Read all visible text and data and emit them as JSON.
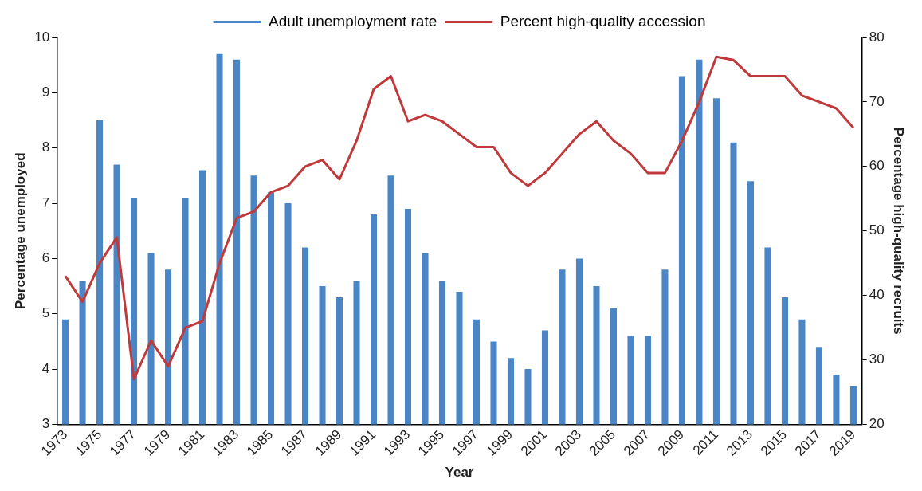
{
  "chart_data": {
    "type": "bar",
    "xlabel": "Year",
    "ylabel": "Percentage unemployed",
    "y2label": "Percentage high-quality recruits",
    "categories": [
      "1973",
      null,
      "1975",
      null,
      "1977",
      null,
      "1979",
      null,
      "1981",
      null,
      "1983",
      null,
      "1985",
      null,
      "1987",
      null,
      "1989",
      null,
      "1991",
      null,
      "1993",
      null,
      "1995",
      null,
      "1997",
      null,
      "1999",
      null,
      "2001",
      null,
      "2003",
      null,
      "2005",
      null,
      "2007",
      null,
      "2009",
      null,
      "2011",
      null,
      "2013",
      null,
      "2015",
      null,
      "2017",
      null,
      "2019"
    ],
    "series": [
      {
        "name": "Adult unemployment rate",
        "color": "#4a86c5",
        "values": [
          4.9,
          5.6,
          8.5,
          7.7,
          7.1,
          6.1,
          5.8,
          7.1,
          7.6,
          9.7,
          9.6,
          7.5,
          7.2,
          7.0,
          6.2,
          5.5,
          5.3,
          5.6,
          6.8,
          7.5,
          6.9,
          6.1,
          5.6,
          5.4,
          4.9,
          4.5,
          4.2,
          4.0,
          4.7,
          5.8,
          6.0,
          5.5,
          5.1,
          4.6,
          4.6,
          5.8,
          9.3,
          9.6,
          8.9,
          8.1,
          7.4,
          6.2,
          5.3,
          4.9,
          4.4,
          3.9,
          3.7
        ]
      },
      {
        "name": "Percent high-quality accession",
        "type": "line",
        "axis": "y2",
        "color": "#c0393b",
        "values": [
          43,
          39,
          45,
          49,
          27,
          33,
          29,
          35,
          36,
          45,
          52,
          53,
          56,
          57,
          60,
          61,
          58,
          64,
          72,
          74,
          67,
          68,
          67,
          65,
          63,
          63,
          59,
          57,
          59,
          62,
          65,
          67,
          64,
          62,
          59,
          59,
          64,
          70,
          77,
          76.5,
          74,
          74,
          74,
          71,
          70,
          69,
          66
        ]
      }
    ],
    "ylim": [
      3,
      10
    ],
    "yticks": [
      3,
      4,
      5,
      6,
      7,
      8,
      9,
      10
    ],
    "y2lim": [
      20,
      80
    ],
    "y2ticks": [
      20,
      30,
      40,
      50,
      60,
      70,
      80
    ],
    "grid": false,
    "legend": "top",
    "marker": "none",
    "line_style": "solid"
  }
}
